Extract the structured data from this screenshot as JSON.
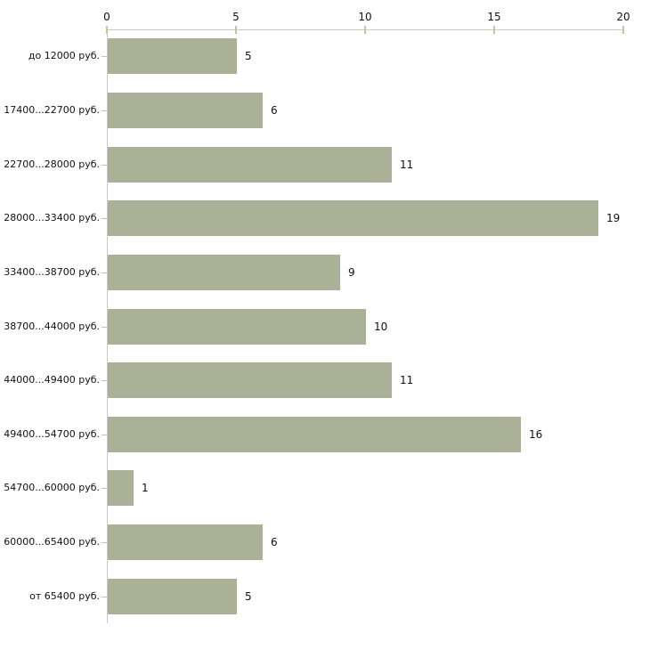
{
  "chart_data": {
    "type": "bar",
    "orientation": "horizontal",
    "title": "",
    "xlabel": "",
    "ylabel": "",
    "categories": [
      "до 12000 руб.",
      "17400...22700 руб.",
      "22700...28000 руб.",
      "28000...33400 руб.",
      "33400...38700 руб.",
      "38700...44000 руб.",
      "44000...49400 руб.",
      "49400...54700 руб.",
      "54700...60000 руб.",
      "60000...65400 руб.",
      "от 65400 руб."
    ],
    "values": [
      5,
      6,
      11,
      19,
      9,
      10,
      11,
      16,
      1,
      6,
      5
    ],
    "x_axis": {
      "position": "top",
      "min": 0,
      "max": 20,
      "ticks": [
        0,
        5,
        10,
        15,
        20
      ]
    },
    "legend": "none",
    "grid": "off",
    "colors": {
      "bar": "#abb197",
      "axis_line": "#c8c8c8",
      "tick_mark": "#c3c59b",
      "text": "#111111",
      "background": "#ffffff"
    }
  }
}
